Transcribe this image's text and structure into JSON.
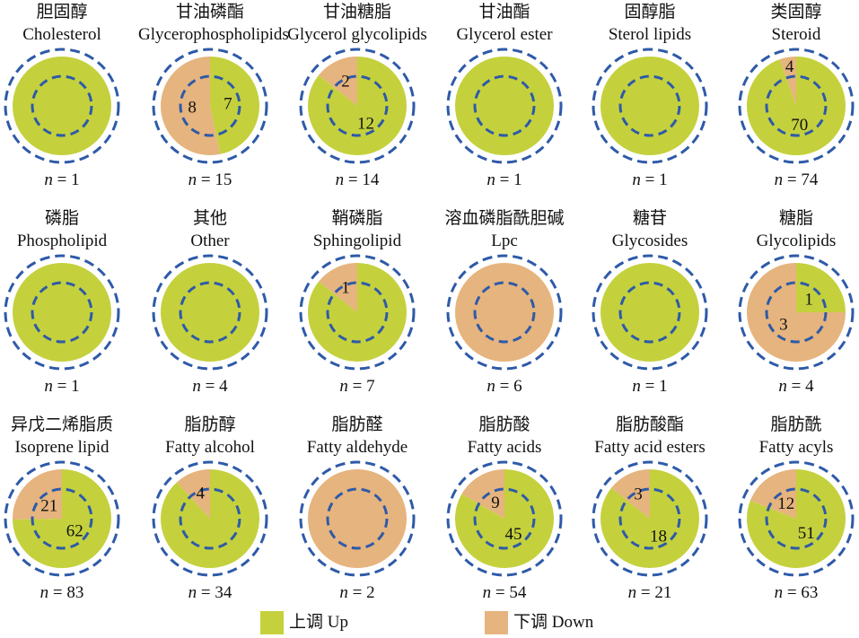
{
  "chart_data": {
    "type": "pie",
    "colors": {
      "up": "#c4d13d",
      "down": "#e6b47e",
      "ring": "#2e5aa8"
    },
    "legend": [
      {
        "key": "up",
        "label": "上调 Up"
      },
      {
        "key": "down",
        "label": "下调 Down"
      }
    ],
    "panels": [
      {
        "cn": "胆固醇",
        "en": "Cholesterol",
        "n": "n = 1",
        "up": 1,
        "down": 0,
        "up_label": "",
        "down_label": ""
      },
      {
        "cn": "甘油磷酯",
        "en": "Glycerophospholipids",
        "n": "n = 15",
        "up": 7,
        "down": 8,
        "up_label": "7",
        "down_label": "8"
      },
      {
        "cn": "甘油糖脂",
        "en": "Glycerol glycolipids",
        "n": "n = 14",
        "up": 12,
        "down": 2,
        "up_label": "12",
        "down_label": "2"
      },
      {
        "cn": "甘油酯",
        "en": "Glycerol ester",
        "n": "n = 1",
        "up": 1,
        "down": 0,
        "up_label": "",
        "down_label": ""
      },
      {
        "cn": "固醇脂",
        "en": "Sterol lipids",
        "n": "n = 1",
        "up": 1,
        "down": 0,
        "up_label": "",
        "down_label": ""
      },
      {
        "cn": "类固醇",
        "en": "Steroid",
        "n": "n = 74",
        "up": 70,
        "down": 4,
        "up_label": "70",
        "down_label": "4"
      },
      {
        "cn": "磷脂",
        "en": "Phospholipid",
        "n": "n = 1",
        "up": 1,
        "down": 0,
        "up_label": "",
        "down_label": ""
      },
      {
        "cn": "其他",
        "en": "Other",
        "n": "n = 4",
        "up": 4,
        "down": 0,
        "up_label": "",
        "down_label": ""
      },
      {
        "cn": "鞘磷脂",
        "en": "Sphingolipid",
        "n": "n = 7",
        "up": 6,
        "down": 1,
        "up_label": "",
        "down_label": "1"
      },
      {
        "cn": "溶血磷脂酰胆碱",
        "en": "Lpc",
        "n": "n = 6",
        "up": 0,
        "down": 6,
        "up_label": "",
        "down_label": ""
      },
      {
        "cn": "糖苷",
        "en": "Glycosides",
        "n": "n = 1",
        "up": 1,
        "down": 0,
        "up_label": "",
        "down_label": ""
      },
      {
        "cn": "糖脂",
        "en": "Glycolipids",
        "n": "n = 4",
        "up": 1,
        "down": 3,
        "up_label": "1",
        "down_label": "3"
      },
      {
        "cn": "异戊二烯脂质",
        "en": "Isoprene lipid",
        "n": "n = 83",
        "up": 62,
        "down": 21,
        "up_label": "62",
        "down_label": "21"
      },
      {
        "cn": "脂肪醇",
        "en": "Fatty alcohol",
        "n": "n = 34",
        "up": 30,
        "down": 4,
        "up_label": "",
        "down_label": "4"
      },
      {
        "cn": "脂肪醛",
        "en": "Fatty aldehyde",
        "n": "n = 2",
        "up": 0,
        "down": 2,
        "up_label": "",
        "down_label": ""
      },
      {
        "cn": "脂肪酸",
        "en": "Fatty acids",
        "n": "n = 54",
        "up": 45,
        "down": 9,
        "up_label": "45",
        "down_label": "9"
      },
      {
        "cn": "脂肪酸酯",
        "en": "Fatty acid esters",
        "n": "n = 21",
        "up": 18,
        "down": 3,
        "up_label": "18",
        "down_label": "3"
      },
      {
        "cn": "脂肪酰",
        "en": "Fatty acyls",
        "n": "n = 63",
        "up": 51,
        "down": 12,
        "up_label": "51",
        "down_label": "12"
      }
    ]
  }
}
